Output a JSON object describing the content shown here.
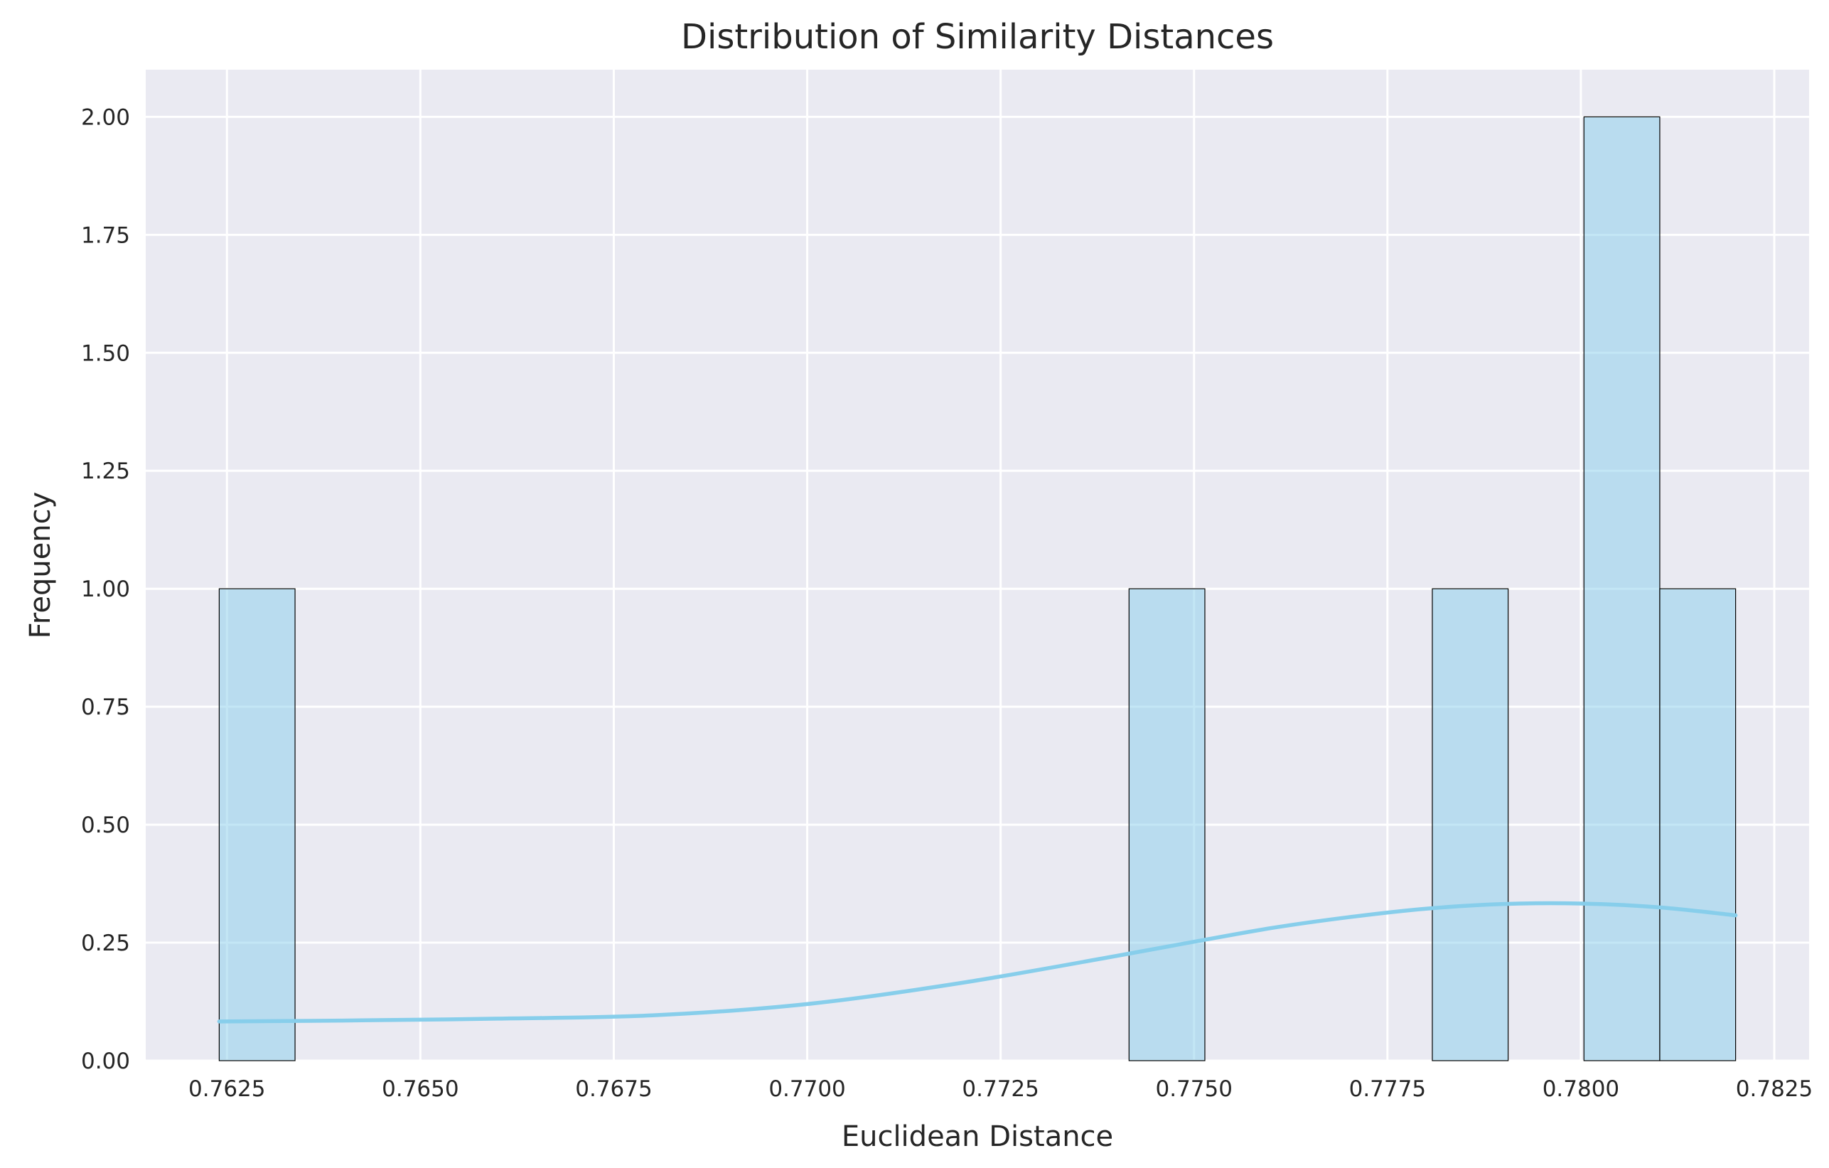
{
  "chart_data": {
    "type": "bar",
    "title": "Distribution of Similarity Distances",
    "xlabel": "Euclidean Distance",
    "ylabel": "Frequency",
    "xlim": [
      0.76145,
      0.78295
    ],
    "ylim": [
      0,
      2.1
    ],
    "x_ticks": [
      0.7625,
      0.765,
      0.7675,
      0.77,
      0.7725,
      0.775,
      0.7775,
      0.78,
      0.7825
    ],
    "x_tick_labels": [
      "0.7625",
      "0.7650",
      "0.7675",
      "0.7700",
      "0.7725",
      "0.7750",
      "0.7775",
      "0.7800",
      "0.7825"
    ],
    "y_ticks": [
      0,
      0.25,
      0.5,
      0.75,
      1.0,
      1.25,
      1.5,
      1.75,
      2.0
    ],
    "y_tick_labels": [
      "0.00",
      "0.25",
      "0.50",
      "0.75",
      "1.00",
      "1.25",
      "1.50",
      "1.75",
      "2.00"
    ],
    "bins": [
      {
        "x0": 0.7624,
        "x1": 0.76338,
        "count": 1
      },
      {
        "x0": 0.77416,
        "x1": 0.77514,
        "count": 1
      },
      {
        "x0": 0.77808,
        "x1": 0.77906,
        "count": 1
      },
      {
        "x0": 0.78004,
        "x1": 0.78102,
        "count": 2
      },
      {
        "x0": 0.78102,
        "x1": 0.782,
        "count": 1
      }
    ],
    "kde": {
      "x": [
        0.7624,
        0.764,
        0.766,
        0.768,
        0.77,
        0.772,
        0.774,
        0.775,
        0.776,
        0.777,
        0.778,
        0.779,
        0.78,
        0.781,
        0.782
      ],
      "y": [
        0.083,
        0.085,
        0.089,
        0.096,
        0.12,
        0.165,
        0.222,
        0.252,
        0.281,
        0.304,
        0.322,
        0.332,
        0.333,
        0.325,
        0.308
      ]
    },
    "colors": {
      "background": "#eaeaf2",
      "grid": "#ffffff",
      "bar_fill": "#87ceeb",
      "bar_fill_opacity": 0.5,
      "bar_edge": "#000000",
      "kde_line": "#87ceeb"
    },
    "grid": true
  }
}
